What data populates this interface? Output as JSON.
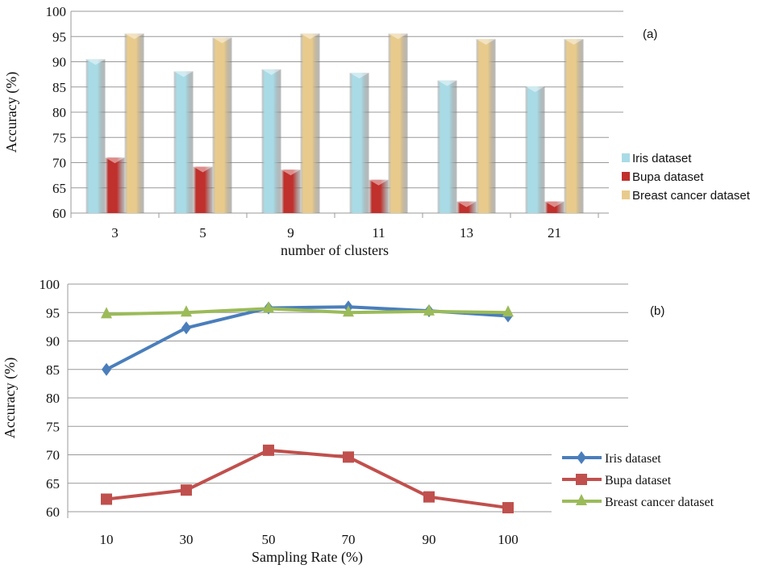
{
  "chart_data": [
    {
      "type": "bar",
      "panel_label": "(a)",
      "title": "",
      "xlabel": "number of clusters",
      "ylabel": "Accuracy  (%)",
      "ylim": [
        60,
        100
      ],
      "yticks": [
        "60",
        "65",
        "70",
        "75",
        "80",
        "85",
        "90",
        "95",
        "100"
      ],
      "categories": [
        "3",
        "5",
        "9",
        "11",
        "13",
        "21"
      ],
      "grid": true,
      "legend_position": "right",
      "series": [
        {
          "name": "Iris dataset",
          "color": "#a9dbe6",
          "values": [
            90.5,
            88.1,
            88.5,
            87.8,
            86.3,
            85.1
          ]
        },
        {
          "name": "Bupa dataset",
          "color": "#c0302c",
          "values": [
            71.0,
            69.2,
            68.6,
            66.6,
            62.3,
            62.3
          ]
        },
        {
          "name": "Breast cancer dataset",
          "color": "#e8cb8c",
          "values": [
            95.6,
            94.8,
            95.6,
            95.6,
            94.5,
            94.5
          ]
        }
      ]
    },
    {
      "type": "line",
      "panel_label": "(b)",
      "title": "",
      "xlabel": "Sampling Rate (%)",
      "ylabel": "Accuracy  (%)",
      "ylim": [
        60,
        100
      ],
      "yticks": [
        "60",
        "65",
        "70",
        "75",
        "80",
        "85",
        "90",
        "95",
        "100"
      ],
      "categories": [
        "10",
        "30",
        "50",
        "70",
        "90",
        "100"
      ],
      "grid": true,
      "legend_position": "right",
      "series": [
        {
          "name": "Iris dataset",
          "color": "#4a7ebb",
          "marker": "diamond",
          "values": [
            85.0,
            92.3,
            95.8,
            96.0,
            95.3,
            94.4
          ]
        },
        {
          "name": "Bupa dataset",
          "color": "#c0504d",
          "marker": "square",
          "values": [
            62.2,
            63.8,
            70.8,
            69.6,
            62.6,
            60.7
          ]
        },
        {
          "name": "Breast cancer dataset",
          "color": "#9bbb59",
          "marker": "triangle",
          "values": [
            94.7,
            95.0,
            95.7,
            95.0,
            95.2,
            95.0
          ]
        }
      ]
    }
  ]
}
